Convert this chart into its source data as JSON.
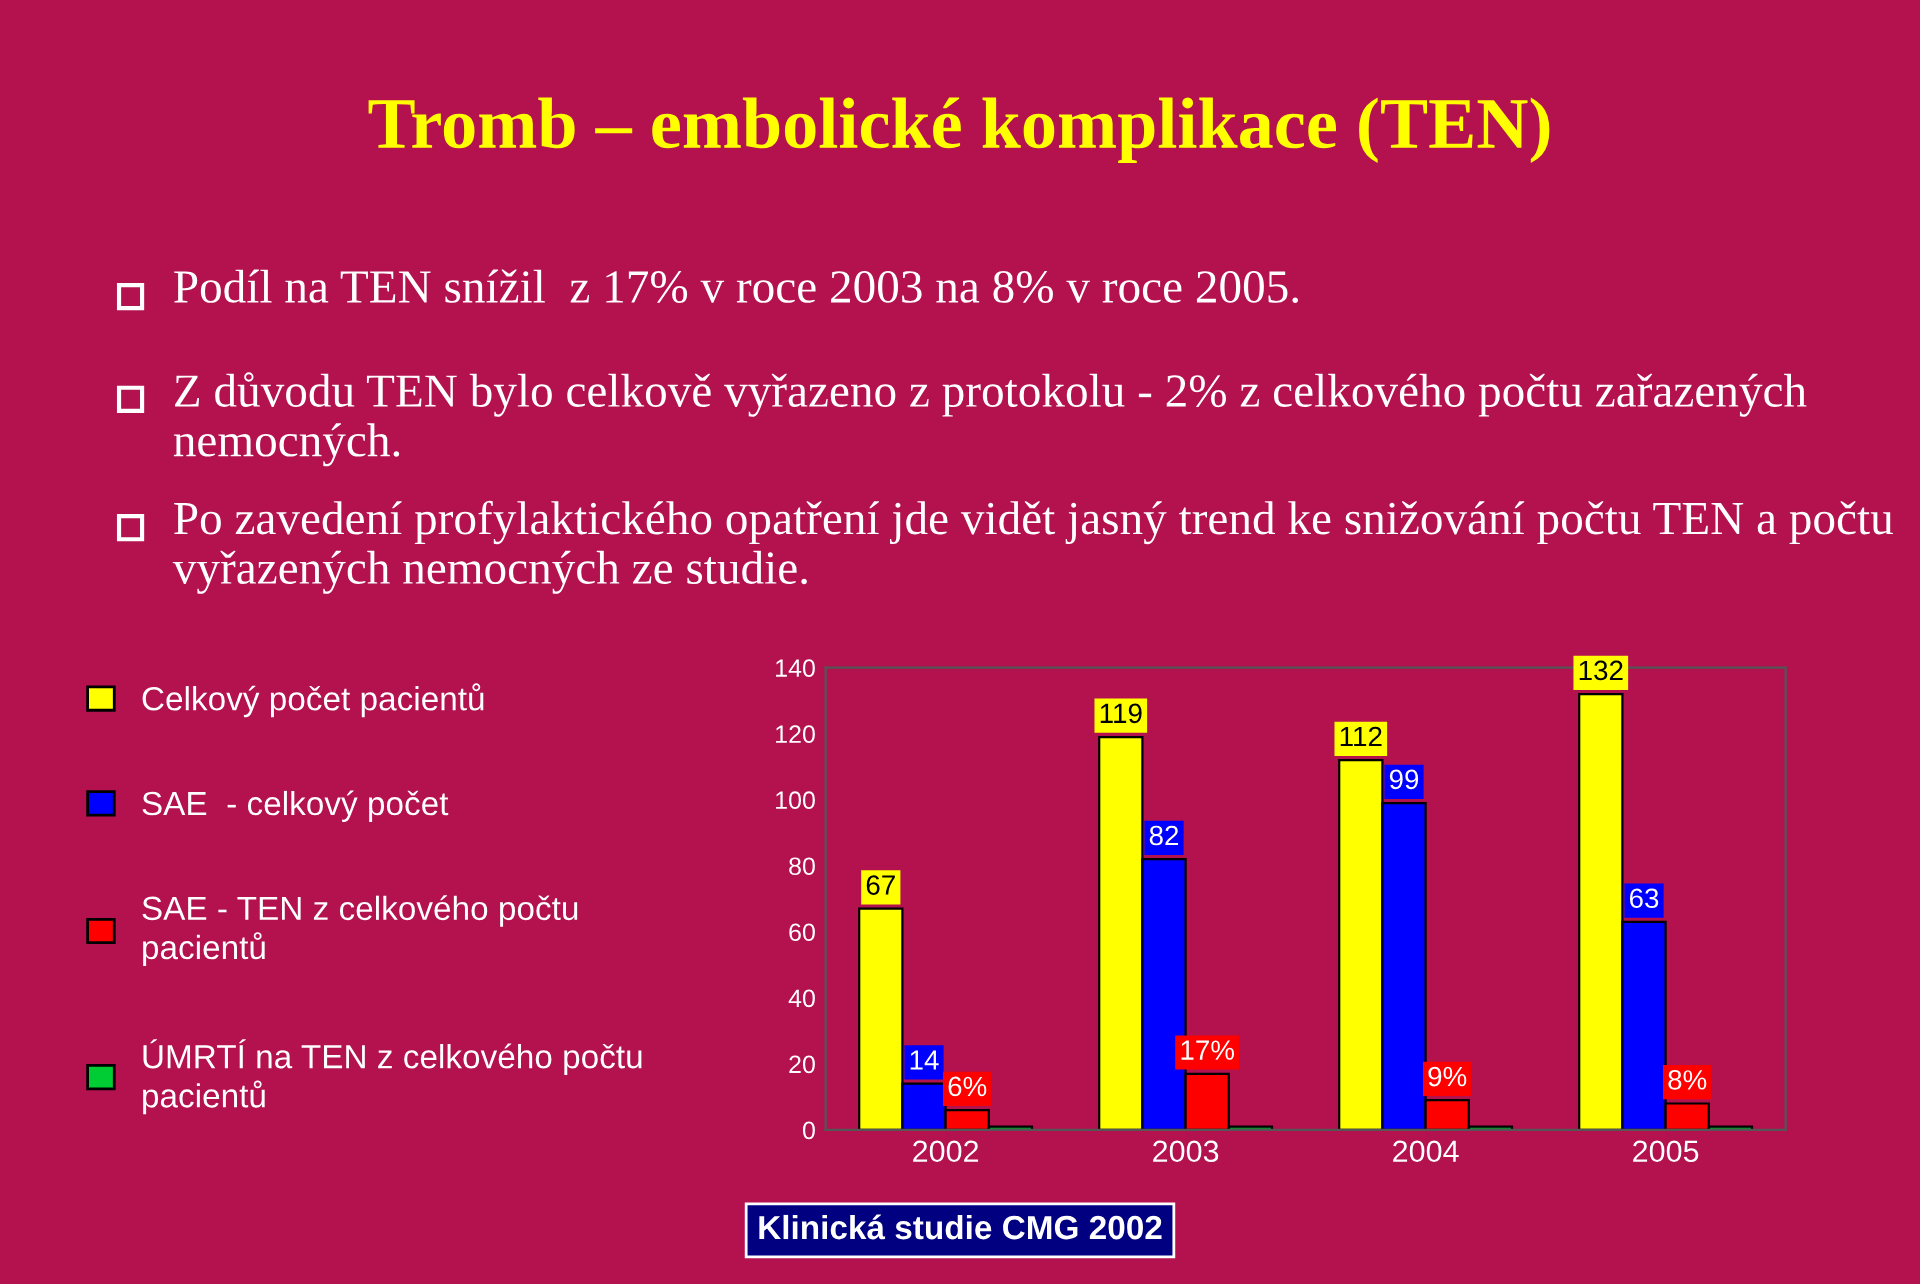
{
  "chart_data": {
    "type": "bar",
    "title": "Tromb – embolické komplikace (TEN)",
    "annotations": [
      "Podíl na TEN snížil  z 17% v roce 2003 na 8% v roce 2005.",
      "Z důvodu TEN bylo celkově vyřazeno z protokolu - 2% z celkového počtu zařazených nemocných.",
      "Po zavedení profylaktického opatření jde vidět jasný trend ke snižování počtu TEN a počtu vyřazených nemocných ze studie.",
      "Klinická studie CMG 2002"
    ],
    "categories": [
      "2002",
      "2003",
      "2004",
      "2005"
    ],
    "series": [
      {
        "name": "Celkový počet pacientů",
        "color": "#ffff00",
        "values": [
          67,
          119,
          112,
          132
        ],
        "value_labels": [
          "67",
          "119",
          "112",
          "132"
        ]
      },
      {
        "name": "SAE  - celkový počet",
        "color": "#0000ff",
        "values": [
          14,
          82,
          99,
          63
        ],
        "value_labels": [
          "14",
          "82",
          "99",
          "63"
        ]
      },
      {
        "name": "SAE - TEN z celkového počtu pacientů",
        "color": "#ff0000",
        "values": [
          6,
          17,
          9,
          8
        ],
        "value_labels": [
          "6%",
          "17%",
          "9%",
          "8%"
        ]
      },
      {
        "name": "ÚMRTÍ na TEN z celkového počtu pacientů",
        "color": "#00cc33",
        "values": [
          1,
          1,
          1,
          1
        ]
      }
    ],
    "ylim": [
      0,
      140
    ],
    "yticks": [
      0,
      20,
      40,
      60,
      80,
      100,
      120,
      140
    ],
    "grid": false,
    "legend": "left"
  }
}
